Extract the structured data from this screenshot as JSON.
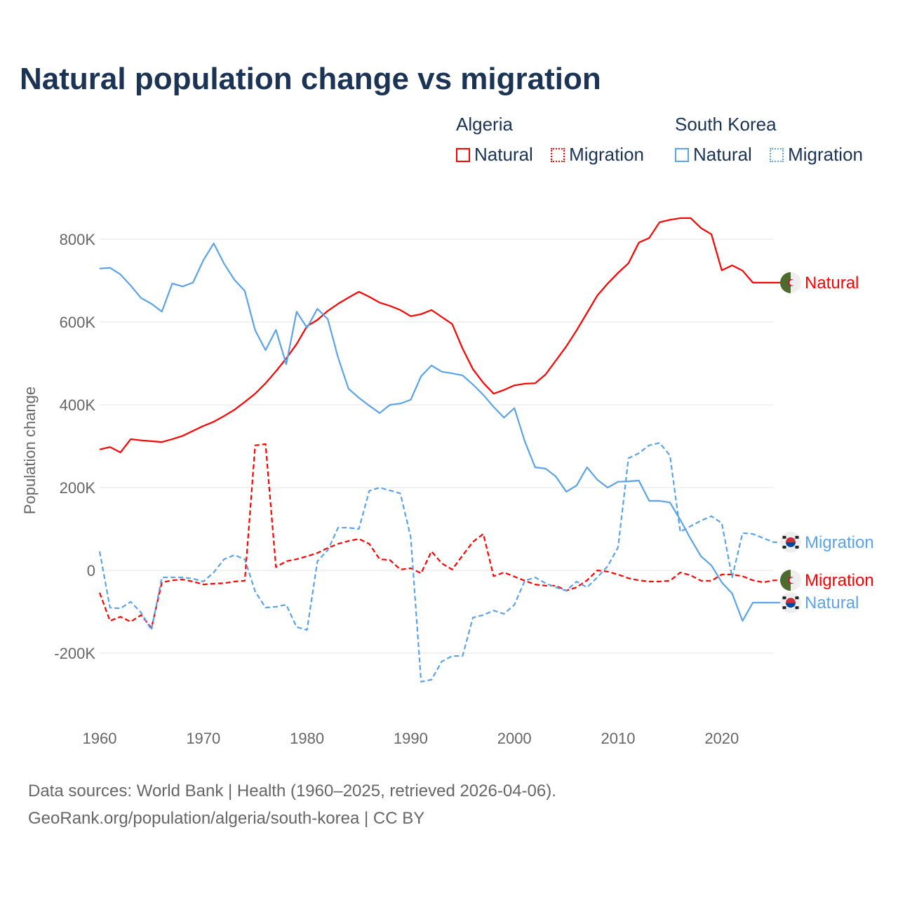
{
  "title": "Natural population change vs migration",
  "legend": {
    "groups": [
      {
        "name": "Algeria",
        "items": [
          {
            "label": "Natural",
            "style": "solid",
            "color": "#ff0000"
          },
          {
            "label": "Migration",
            "style": "dashed",
            "color": "#ff0000"
          }
        ]
      },
      {
        "name": "South Korea",
        "items": [
          {
            "label": "Natural",
            "style": "solid",
            "color": "#5ba3e8"
          },
          {
            "label": "Migration",
            "style": "dashed",
            "color": "#5ba3e8"
          }
        ]
      }
    ]
  },
  "footer": {
    "line1": "Data sources: World Bank | Health (1960–2025, retrieved 2026-04-06).",
    "line2": "GeoRank.org/population/algeria/south-korea | CC BY"
  },
  "chart_data": {
    "type": "line",
    "title": "Natural population change vs migration",
    "xlabel": "",
    "ylabel": "Population change",
    "xlim": [
      1960,
      2025
    ],
    "ylim": [
      -300000,
      900000
    ],
    "x_ticks": [
      1960,
      1970,
      1980,
      1990,
      2000,
      2010,
      2020
    ],
    "y_ticks": [
      {
        "v": -200000,
        "label": "-200K"
      },
      {
        "v": 0,
        "label": "0"
      },
      {
        "v": 200000,
        "label": "200K"
      },
      {
        "v": 400000,
        "label": "400K"
      },
      {
        "v": 600000,
        "label": "600K"
      },
      {
        "v": 800000,
        "label": "800K"
      }
    ],
    "grid": true,
    "x_start": 1960,
    "series": [
      {
        "name": "Algeria Natural",
        "country": "Algeria",
        "end_label": "Natural",
        "color": "#ff0000",
        "dashed": false,
        "flag": "algeria-flag",
        "values_k": [
          292,
          298,
          285,
          317,
          314,
          312,
          310,
          317,
          325,
          337,
          349,
          359,
          373,
          388,
          407,
          427,
          452,
          481,
          512,
          547,
          590,
          605,
          627,
          644,
          659,
          673,
          661,
          647,
          639,
          629,
          614,
          619,
          629,
          612,
          595,
          536,
          486,
          453,
          427,
          436,
          447,
          451,
          452,
          473,
          507,
          541,
          580,
          622,
          664,
          693,
          719,
          742,
          792,
          803,
          841,
          847,
          851,
          851,
          827,
          812,
          725,
          737,
          724,
          695,
          695,
          695
        ]
      },
      {
        "name": "Algeria Migration",
        "country": "Algeria",
        "end_label": "Migration",
        "color": "#ff0000",
        "dashed": true,
        "flag": "algeria-flag",
        "values_k": [
          -54,
          -122,
          -112,
          -124,
          -108,
          -139,
          -29,
          -24,
          -22,
          -27,
          -34,
          -32,
          -31,
          -27,
          -25,
          302,
          305,
          8,
          22,
          27,
          34,
          42,
          54,
          64,
          71,
          76,
          64,
          27,
          25,
          2,
          5,
          -7,
          46,
          17,
          2,
          36,
          69,
          88,
          -14,
          -5,
          -15,
          -25,
          -34,
          -37,
          -37,
          -49,
          -41,
          -24,
          0,
          -3,
          -10,
          -19,
          -24,
          -27,
          -27,
          -25,
          -5,
          -12,
          -25,
          -25,
          -10,
          -10,
          -14,
          -24,
          -29,
          -24
        ]
      },
      {
        "name": "South Korea Natural",
        "country": "South Korea",
        "end_label": "Natural",
        "color": "#5ba3e8",
        "dashed": false,
        "flag": "south-korea-flag",
        "values_k": [
          729,
          731,
          715,
          688,
          658,
          644,
          625,
          693,
          686,
          695,
          749,
          790,
          741,
          702,
          675,
          580,
          532,
          581,
          498,
          625,
          586,
          632,
          607,
          514,
          439,
          417,
          398,
          380,
          400,
          403,
          412,
          469,
          495,
          480,
          476,
          471,
          449,
          424,
          395,
          369,
          392,
          312,
          249,
          246,
          227,
          190,
          205,
          249,
          219,
          200,
          214,
          215,
          217,
          168,
          168,
          164,
          122,
          76,
          34,
          12,
          -29,
          -56,
          -122,
          -78,
          -78,
          -78
        ]
      },
      {
        "name": "South Korea Migration",
        "country": "South Korea",
        "end_label": "Migration",
        "color": "#5ba3e8",
        "dashed": true,
        "flag": "south-korea-flag",
        "values_k": [
          46,
          -90,
          -92,
          -76,
          -102,
          -144,
          -17,
          -17,
          -17,
          -20,
          -27,
          -5,
          27,
          37,
          27,
          -51,
          -90,
          -88,
          -83,
          -137,
          -144,
          22,
          49,
          103,
          103,
          100,
          192,
          200,
          193,
          186,
          81,
          -269,
          -264,
          -220,
          -207,
          -207,
          -114,
          -108,
          -97,
          -105,
          -83,
          -25,
          -17,
          -31,
          -41,
          -49,
          -27,
          -41,
          -17,
          10,
          56,
          271,
          283,
          302,
          308,
          278,
          93,
          107,
          120,
          131,
          114,
          -17,
          90,
          88,
          78,
          68
        ]
      }
    ]
  }
}
